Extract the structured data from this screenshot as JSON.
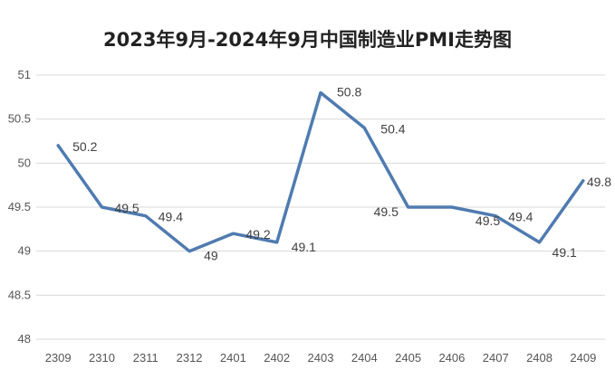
{
  "chart_data": {
    "type": "line",
    "title": "2023年9月-2024年9月中国制造业PMI走势图",
    "categories": [
      "2309",
      "2310",
      "2311",
      "2312",
      "2401",
      "2402",
      "2403",
      "2404",
      "2405",
      "2406",
      "2407",
      "2408",
      "2409"
    ],
    "series": [
      {
        "values": [
          50.2,
          49.5,
          49.4,
          49.0,
          49.2,
          49.1,
          50.8,
          50.4,
          49.5,
          49.5,
          49.4,
          49.1,
          49.8
        ],
        "labels": [
          "50.2",
          "49.5",
          "49.4",
          "49",
          "49.2",
          "49.1",
          "50.8",
          "50.4",
          "49.5",
          "49.5",
          "49.4",
          "49.1",
          "49.8"
        ],
        "color": "#4f7bb0"
      }
    ],
    "xlabel": "",
    "ylabel": "",
    "ylim": [
      48,
      51
    ],
    "yticks": [
      "48",
      "48.5",
      "49",
      "49.5",
      "50",
      "50.5",
      "51"
    ],
    "grid": true,
    "legend": "none"
  }
}
